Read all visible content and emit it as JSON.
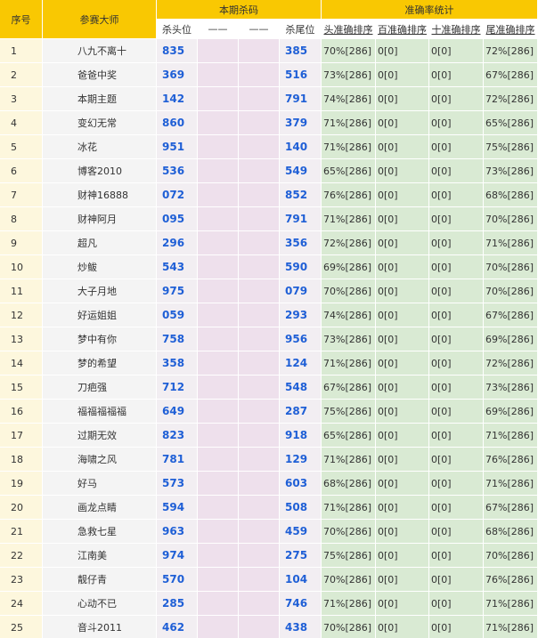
{
  "header": {
    "no": "序号",
    "master": "参赛大师",
    "kill_group": "本期杀码",
    "stats_group": "准确率统计",
    "sub": [
      "杀头位",
      "——",
      "——",
      "杀尾位",
      "头准确排序",
      "百准确排序",
      "十准确排序",
      "尾准确排序"
    ]
  },
  "rows": [
    [
      "1",
      "八九不离十",
      "835",
      "385",
      "70%[286]",
      "0[0]",
      "0[0]",
      "72%[286]"
    ],
    [
      "2",
      "爸爸中奖",
      "369",
      "516",
      "73%[286]",
      "0[0]",
      "0[0]",
      "67%[286]"
    ],
    [
      "3",
      "本期主题",
      "142",
      "791",
      "74%[286]",
      "0[0]",
      "0[0]",
      "72%[286]"
    ],
    [
      "4",
      "变幻无常",
      "860",
      "379",
      "71%[286]",
      "0[0]",
      "0[0]",
      "65%[286]"
    ],
    [
      "5",
      "冰花",
      "951",
      "140",
      "71%[286]",
      "0[0]",
      "0[0]",
      "75%[286]"
    ],
    [
      "6",
      "博客2010",
      "536",
      "549",
      "65%[286]",
      "0[0]",
      "0[0]",
      "73%[286]"
    ],
    [
      "7",
      "财神16888",
      "072",
      "852",
      "76%[286]",
      "0[0]",
      "0[0]",
      "68%[286]"
    ],
    [
      "8",
      "财神阿月",
      "095",
      "791",
      "71%[286]",
      "0[0]",
      "0[0]",
      "70%[286]"
    ],
    [
      "9",
      "超凡",
      "296",
      "356",
      "72%[286]",
      "0[0]",
      "0[0]",
      "71%[286]"
    ],
    [
      "10",
      "炒鲅",
      "543",
      "590",
      "69%[286]",
      "0[0]",
      "0[0]",
      "70%[286]"
    ],
    [
      "11",
      "大子月地",
      "975",
      "079",
      "70%[286]",
      "0[0]",
      "0[0]",
      "70%[286]"
    ],
    [
      "12",
      "好运姐姐",
      "059",
      "293",
      "74%[286]",
      "0[0]",
      "0[0]",
      "67%[286]"
    ],
    [
      "13",
      "梦中有你",
      "758",
      "956",
      "73%[286]",
      "0[0]",
      "0[0]",
      "69%[286]"
    ],
    [
      "14",
      "梦的希望",
      "358",
      "124",
      "71%[286]",
      "0[0]",
      "0[0]",
      "72%[286]"
    ],
    [
      "15",
      "刀疤强",
      "712",
      "548",
      "67%[286]",
      "0[0]",
      "0[0]",
      "73%[286]"
    ],
    [
      "16",
      "福福福福福",
      "649",
      "287",
      "75%[286]",
      "0[0]",
      "0[0]",
      "69%[286]"
    ],
    [
      "17",
      "过期无效",
      "823",
      "918",
      "65%[286]",
      "0[0]",
      "0[0]",
      "71%[286]"
    ],
    [
      "18",
      "海啸之风",
      "781",
      "129",
      "71%[286]",
      "0[0]",
      "0[0]",
      "76%[286]"
    ],
    [
      "19",
      "好马",
      "573",
      "603",
      "68%[286]",
      "0[0]",
      "0[0]",
      "71%[286]"
    ],
    [
      "20",
      "画龙点睛",
      "594",
      "508",
      "71%[286]",
      "0[0]",
      "0[0]",
      "67%[286]"
    ],
    [
      "21",
      "急救七星",
      "963",
      "459",
      "70%[286]",
      "0[0]",
      "0[0]",
      "68%[286]"
    ],
    [
      "22",
      "江南美",
      "974",
      "275",
      "75%[286]",
      "0[0]",
      "0[0]",
      "70%[286]"
    ],
    [
      "23",
      "靓仔青",
      "570",
      "104",
      "70%[286]",
      "0[0]",
      "0[0]",
      "76%[286]"
    ],
    [
      "24",
      "心动不已",
      "285",
      "746",
      "71%[286]",
      "0[0]",
      "0[0]",
      "71%[286]"
    ],
    [
      "25",
      "音斗2011",
      "462",
      "438",
      "70%[286]",
      "0[0]",
      "0[0]",
      "71%[286]"
    ]
  ]
}
